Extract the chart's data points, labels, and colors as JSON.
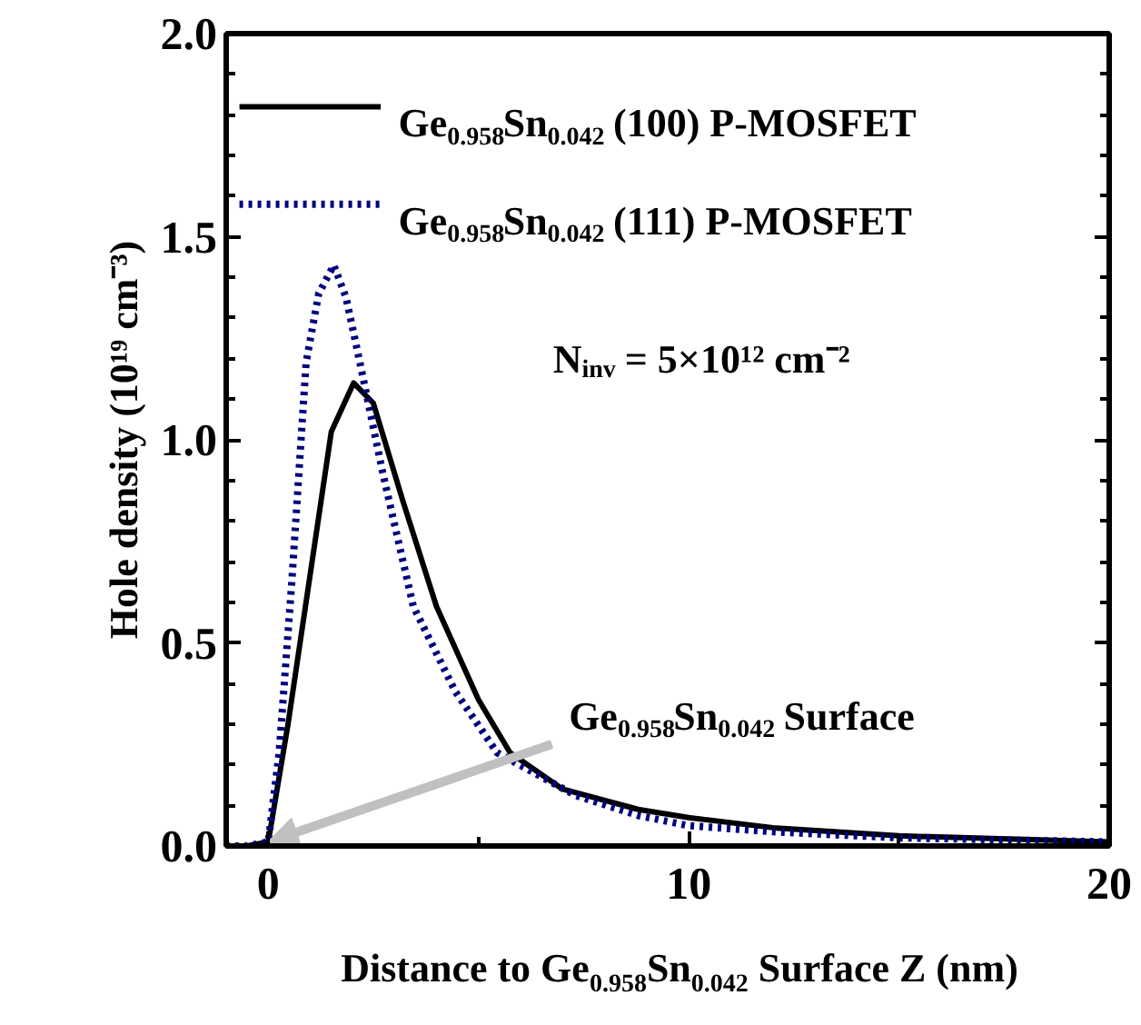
{
  "chart_data": {
    "type": "line",
    "xlabel": "Distance to Ge$_{0.958}$Sn$_{0.042}$ Surface Z (nm)",
    "ylabel": "Hole density (10¹⁹ cm⁻³)",
    "xlim": [
      -1,
      20
    ],
    "xticks": [
      0,
      10,
      20
    ],
    "ylim": [
      0,
      2
    ],
    "yticks": [
      {
        "value": 0,
        "label": "0.0"
      },
      {
        "value": 0.5,
        "label": "0.5"
      },
      {
        "value": 1,
        "label": "1.0"
      },
      {
        "value": 1.5,
        "label": "1.5"
      },
      {
        "value": 2,
        "label": "2.0"
      }
    ],
    "grid": false,
    "legend": "top left",
    "annotations": [
      "N$_{inv}$ = 5×10¹² cm⁻²",
      "Ge$_{0.958}$Sn$_{0.042}$ Surface"
    ],
    "series": [
      {
        "name": "Ge$_{0.958}$Sn$_{0.042}$ (100) P-MOSFET",
        "color": "#000000",
        "line_style": "solid",
        "x": [
          -1,
          -0.5,
          0,
          0.47,
          1.5,
          2.03,
          2.5,
          3.2,
          4.0,
          5.0,
          5.75,
          7.0,
          8.8,
          10,
          12,
          15,
          20
        ],
        "values": [
          0,
          0,
          0.01,
          0.3,
          1.02,
          1.14,
          1.09,
          0.85,
          0.59,
          0.36,
          0.23,
          0.14,
          0.09,
          0.07,
          0.045,
          0.025,
          0.01
        ]
      },
      {
        "name": "Ge$_{0.958}$Sn$_{0.042}$ (111) P-MOSFET",
        "color": "#000080",
        "line_style": "dotted",
        "x": [
          -1,
          -0.5,
          0,
          0.26,
          0.56,
          0.9,
          1.2,
          1.56,
          1.85,
          2.16,
          2.72,
          3.45,
          4.45,
          5.44,
          7.3,
          8.8,
          10,
          12,
          15,
          20
        ],
        "values": [
          0,
          0,
          0.01,
          0.23,
          0.65,
          1.19,
          1.36,
          1.43,
          1.35,
          1.2,
          0.92,
          0.59,
          0.38,
          0.23,
          0.125,
          0.075,
          0.05,
          0.035,
          0.02,
          0.01
        ]
      }
    ]
  }
}
